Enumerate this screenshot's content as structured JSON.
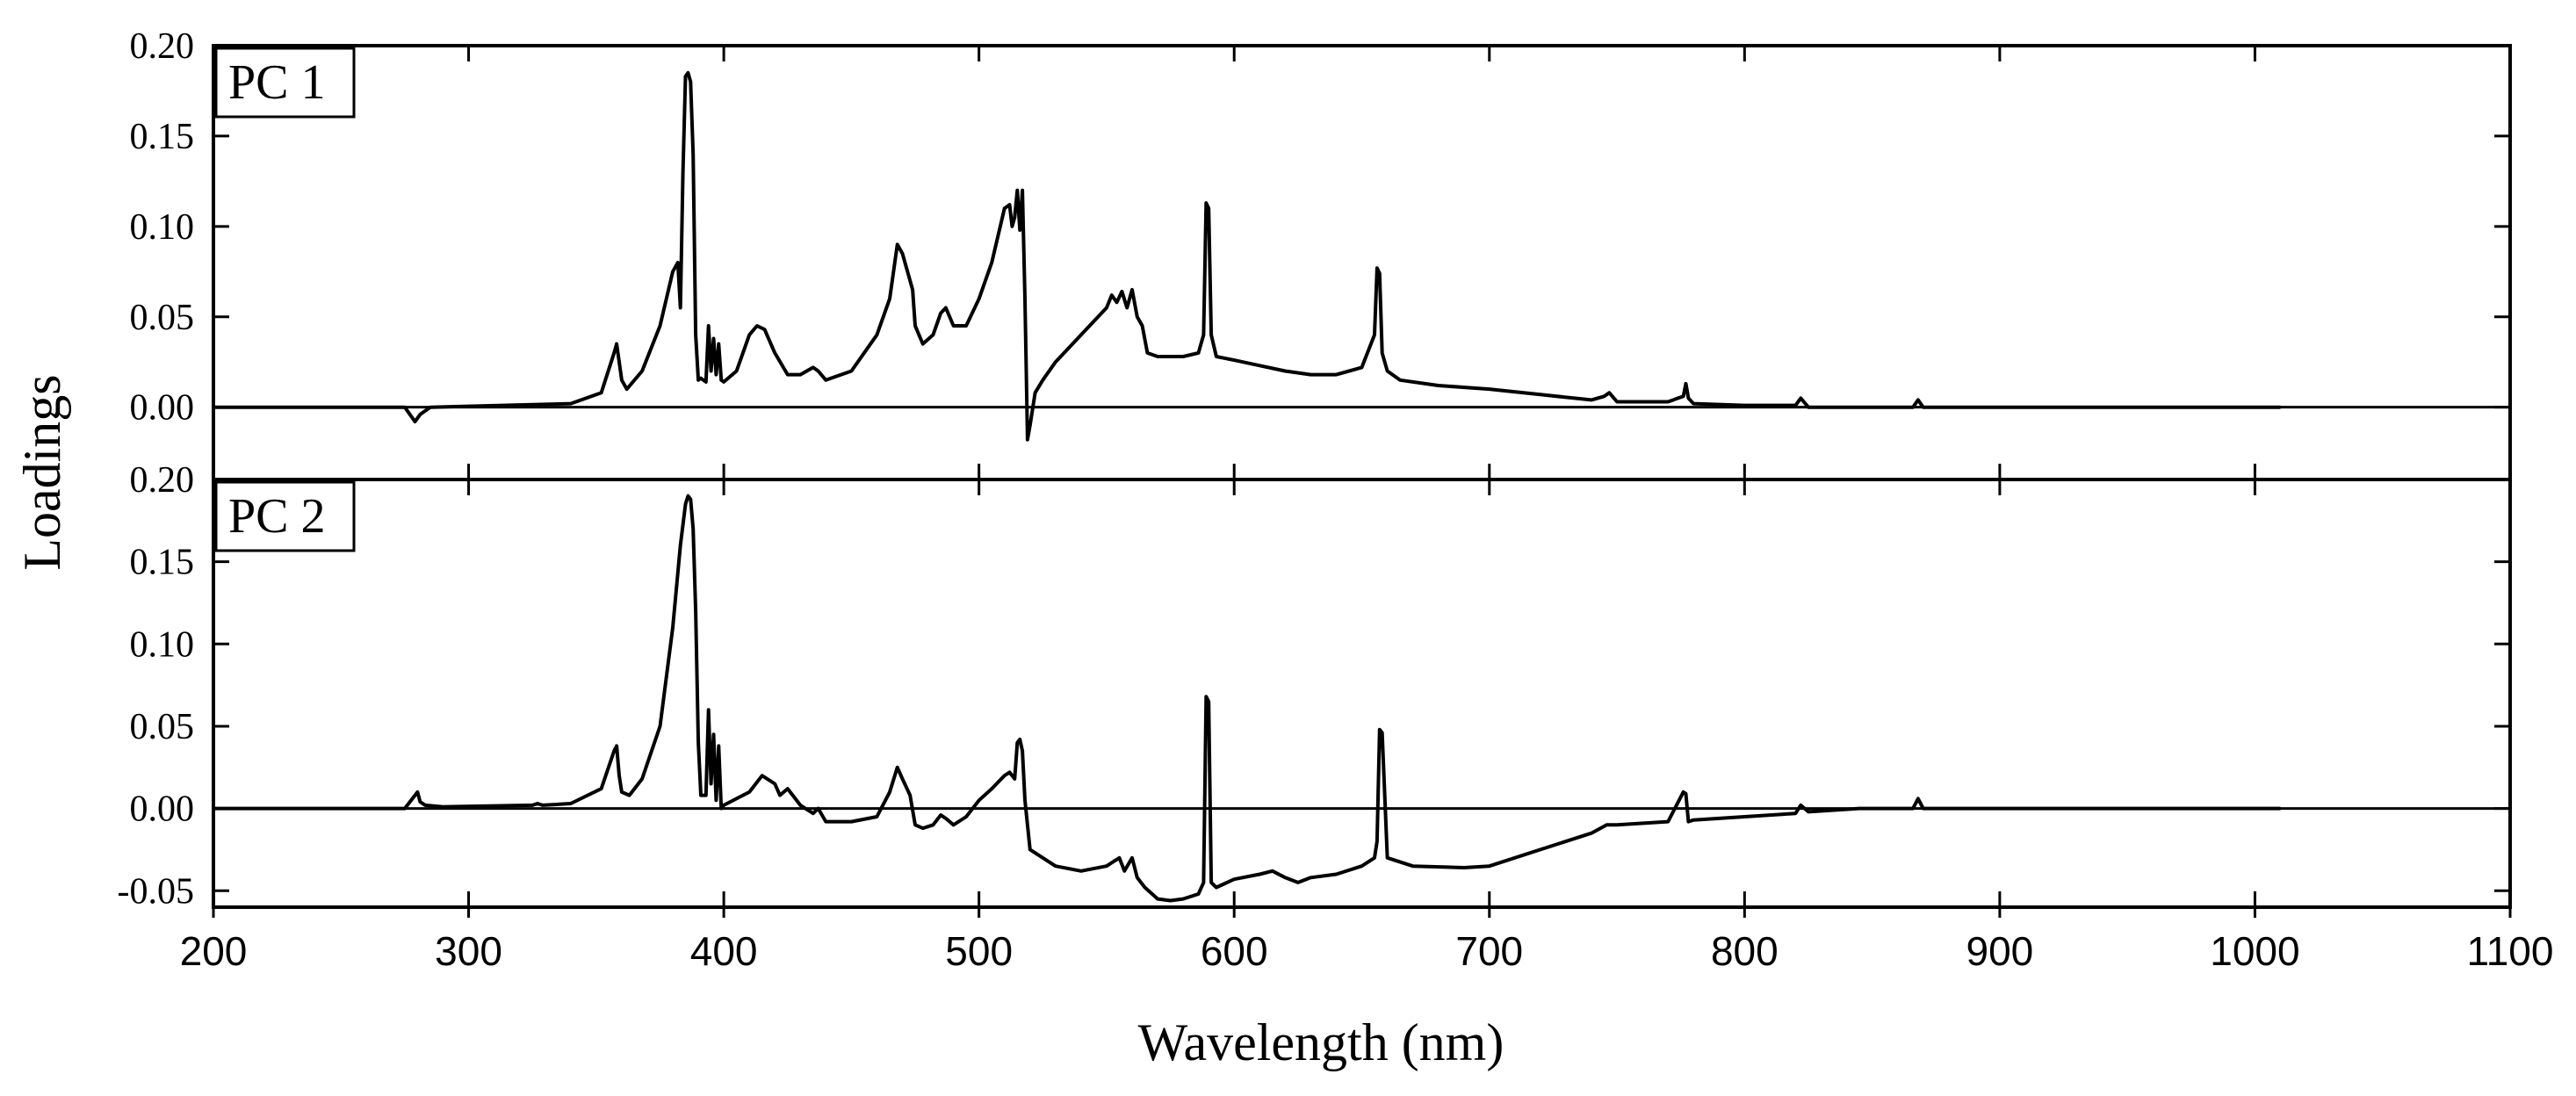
{
  "chart_data": {
    "type": "line",
    "xlabel": "Wavelength (nm)",
    "ylabel": "Loadings",
    "xlim": [
      200,
      1100
    ],
    "x_ticks": [
      200,
      300,
      400,
      500,
      600,
      700,
      800,
      900,
      1000,
      1100
    ],
    "x_tick_labels": [
      "200",
      "300",
      "400",
      "500",
      "600",
      "700",
      "800",
      "900",
      "1000",
      "1100"
    ],
    "panels": [
      {
        "label": "PC 1",
        "ylim": [
          -0.04,
          0.2
        ],
        "y_ticks": [
          0.0,
          0.05,
          0.1,
          0.15,
          0.2
        ],
        "y_tick_labels": [
          "0.00",
          "0.05",
          "0.10",
          "0.15",
          "0.20"
        ],
        "series": [
          {
            "name": "PC 1",
            "x": [
              200,
              275,
              279,
              281,
              285,
              340,
              352,
              357,
              358,
              359,
              360,
              362,
              368,
              375,
              380,
              382,
              383,
              384,
              385,
              386,
              387,
              388,
              389,
              390,
              391,
              393,
              394,
              395,
              396,
              397,
              398,
              399,
              400,
              405,
              410,
              413,
              416,
              420,
              425,
              430,
              435,
              437,
              440,
              450,
              460,
              465,
              468,
              470,
              472,
              474,
              475,
              478,
              482,
              485,
              487,
              490,
              495,
              500,
              505,
              510,
              512,
              513,
              514,
              515,
              516,
              517,
              518,
              519,
              520,
              522,
              525,
              530,
              540,
              550,
              552,
              554,
              556,
              558,
              560,
              562,
              564,
              566,
              570,
              580,
              586,
              588,
              589,
              590,
              591,
              593,
              600,
              610,
              620,
              630,
              640,
              650,
              655,
              656,
              657,
              658,
              660,
              665,
              680,
              700,
              720,
              740,
              745,
              747,
              750,
              770,
              776,
              777,
              778,
              780,
              800,
              820,
              822,
              825,
              850,
              866,
              868,
              870,
              900,
              950,
              1000,
              1010
            ],
            "y": [
              0,
              0,
              -0.008,
              -0.004,
              0,
              0.002,
              0.008,
              0.03,
              0.035,
              0.025,
              0.015,
              0.01,
              0.02,
              0.045,
              0.075,
              0.08,
              0.055,
              0.13,
              0.183,
              0.185,
              0.18,
              0.14,
              0.04,
              0.015,
              0.016,
              0.014,
              0.045,
              0.02,
              0.038,
              0.018,
              0.035,
              0.015,
              0.014,
              0.02,
              0.04,
              0.045,
              0.043,
              0.03,
              0.018,
              0.018,
              0.022,
              0.02,
              0.015,
              0.02,
              0.04,
              0.06,
              0.09,
              0.085,
              0.075,
              0.065,
              0.045,
              0.035,
              0.04,
              0.052,
              0.055,
              0.045,
              0.045,
              0.06,
              0.08,
              0.11,
              0.112,
              0.1,
              0.105,
              0.12,
              0.098,
              0.12,
              0.06,
              -0.018,
              -0.01,
              0.008,
              0.015,
              0.025,
              0.04,
              0.055,
              0.062,
              0.058,
              0.064,
              0.055,
              0.065,
              0.05,
              0.045,
              0.03,
              0.028,
              0.028,
              0.03,
              0.04,
              0.113,
              0.11,
              0.04,
              0.028,
              0.026,
              0.023,
              0.02,
              0.018,
              0.018,
              0.022,
              0.04,
              0.077,
              0.074,
              0.03,
              0.02,
              0.015,
              0.012,
              0.01,
              0.007,
              0.004,
              0.006,
              0.008,
              0.003,
              0.003,
              0.006,
              0.013,
              0.005,
              0.002,
              0.001,
              0.001,
              0.005,
              0.0,
              0.0,
              0.0,
              0.004,
              0.0,
              0.0,
              0.0,
              0.0,
              0.0
            ]
          }
        ]
      },
      {
        "label": "PC 2",
        "ylim": [
          -0.06,
          0.2
        ],
        "y_ticks": [
          -0.05,
          0.0,
          0.05,
          0.1,
          0.15,
          0.2
        ],
        "y_tick_labels": [
          "-0.05",
          "0.00",
          "0.05",
          "0.10",
          "0.15",
          "0.20"
        ],
        "series": [
          {
            "name": "PC 2",
            "x": [
              200,
              275,
              280,
              281,
              283,
              290,
              325,
              327,
              329,
              340,
              352,
              357,
              358,
              359,
              360,
              363,
              368,
              375,
              380,
              383,
              385,
              386,
              387,
              388,
              389,
              390,
              391,
              393,
              394,
              395,
              396,
              397,
              398,
              399,
              400,
              405,
              410,
              415,
              420,
              422,
              425,
              430,
              435,
              437,
              440,
              450,
              460,
              465,
              468,
              470,
              473,
              475,
              478,
              482,
              485,
              487,
              490,
              495,
              500,
              505,
              510,
              512,
              514,
              515,
              516,
              517,
              518,
              520,
              525,
              530,
              540,
              550,
              555,
              557,
              560,
              562,
              565,
              570,
              575,
              580,
              586,
              588,
              589,
              590,
              591,
              593,
              600,
              610,
              615,
              620,
              625,
              630,
              640,
              650,
              655,
              656,
              657,
              658,
              660,
              670,
              690,
              700,
              720,
              740,
              746,
              750,
              770,
              776,
              777,
              778,
              780,
              800,
              820,
              822,
              825,
              845,
              866,
              868,
              870,
              880,
              900,
              950,
              1000,
              1010
            ],
            "y": [
              0,
              0,
              0.01,
              0.004,
              0.002,
              0.001,
              0.002,
              0.003,
              0.002,
              0.003,
              0.012,
              0.035,
              0.038,
              0.02,
              0.01,
              0.008,
              0.018,
              0.05,
              0.11,
              0.16,
              0.185,
              0.19,
              0.188,
              0.17,
              0.12,
              0.04,
              0.008,
              0.008,
              0.06,
              0.015,
              0.045,
              0.005,
              0.038,
              0.0,
              0.002,
              0.006,
              0.01,
              0.02,
              0.015,
              0.008,
              0.012,
              0.002,
              -0.003,
              0.0,
              -0.008,
              -0.008,
              -0.005,
              0.01,
              0.025,
              0.018,
              0.008,
              -0.01,
              -0.012,
              -0.01,
              -0.004,
              -0.006,
              -0.01,
              -0.005,
              0.005,
              0.012,
              0.02,
              0.022,
              0.018,
              0.04,
              0.042,
              0.035,
              0.005,
              -0.025,
              -0.03,
              -0.035,
              -0.038,
              -0.035,
              -0.03,
              -0.038,
              -0.03,
              -0.042,
              -0.048,
              -0.055,
              -0.056,
              -0.055,
              -0.052,
              -0.045,
              0.068,
              0.065,
              -0.045,
              -0.048,
              -0.043,
              -0.04,
              -0.038,
              -0.042,
              -0.045,
              -0.042,
              -0.04,
              -0.035,
              -0.03,
              -0.02,
              0.048,
              0.046,
              -0.03,
              -0.035,
              -0.036,
              -0.035,
              -0.025,
              -0.015,
              -0.01,
              -0.01,
              -0.008,
              0.01,
              0.009,
              -0.008,
              -0.007,
              -0.005,
              -0.003,
              0.002,
              -0.002,
              0.0,
              0.0,
              0.006,
              0.0,
              0.0,
              0.0,
              0.0,
              0.0,
              0.0
            ]
          }
        ]
      }
    ]
  }
}
